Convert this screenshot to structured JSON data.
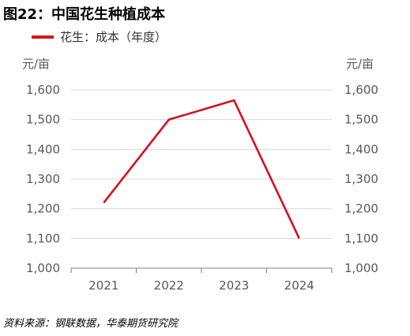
{
  "figure": {
    "title": "图22：中国花生种植成本",
    "source": "资料来源：钢联数据，华泰期货研究院"
  },
  "chart_data": {
    "type": "line",
    "categories": [
      "2021",
      "2022",
      "2023",
      "2024"
    ],
    "series": [
      {
        "name": "花生：成本（年度）",
        "color": "#d7101e",
        "values": [
          1220,
          1500,
          1565,
          1100
        ]
      }
    ],
    "ylabel_left": "元/亩",
    "ylabel_right": "元/亩",
    "ylim": [
      1000,
      1600
    ],
    "yticks": [
      1000,
      1100,
      1200,
      1300,
      1400,
      1500,
      1600
    ],
    "ytick_labels": [
      "1,000",
      "1,100",
      "1,200",
      "1,300",
      "1,400",
      "1,500",
      "1,600"
    ],
    "grid": true,
    "legend_position": "top-left"
  }
}
